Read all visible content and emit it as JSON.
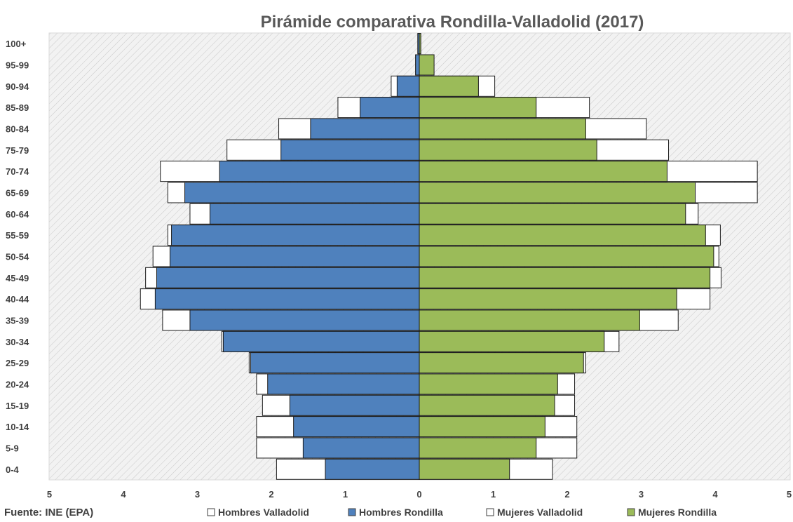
{
  "chart_data": {
    "type": "bar",
    "orientation": "horizontal",
    "title": "Pirámide comparativa Rondilla-Valladolid (2017)",
    "source": "Fuente: INE (EPA)",
    "categories": [
      "100+",
      "95-99",
      "90-94",
      "85-89",
      "80-84",
      "75-79",
      "70-74",
      "65-69",
      "60-64",
      "55-59",
      "50-54",
      "45-49",
      "40-44",
      "35-39",
      "30-34",
      "25-29",
      "20-24",
      "15-19",
      "10-14",
      "5-9",
      "0-4"
    ],
    "xlim": [
      -5,
      5
    ],
    "x_ticks": [
      -5,
      -4,
      -3,
      -2,
      -1,
      0,
      1,
      2,
      3,
      4,
      5
    ],
    "x_tick_labels": [
      "5",
      "4",
      "3",
      "2",
      "1",
      "0",
      "1",
      "2",
      "3",
      "4",
      "5"
    ],
    "grid": false,
    "background_hatch": true,
    "legend_position": "bottom",
    "series": [
      {
        "name": "Hombres Valladolid",
        "color": "#ffffff",
        "side": "left",
        "values": [
          0.02,
          0.05,
          0.38,
          1.1,
          1.9,
          2.6,
          3.5,
          3.4,
          3.1,
          3.4,
          3.6,
          3.7,
          3.77,
          3.47,
          2.67,
          2.3,
          2.2,
          2.12,
          2.2,
          2.2,
          1.93
        ]
      },
      {
        "name": "Hombres Rondilla",
        "color": "#4f81bd",
        "side": "left",
        "values": [
          0.02,
          0.05,
          0.3,
          0.8,
          1.47,
          1.87,
          2.7,
          3.17,
          2.83,
          3.35,
          3.37,
          3.55,
          3.57,
          3.1,
          2.65,
          2.28,
          2.05,
          1.75,
          1.7,
          1.57,
          1.27
        ]
      },
      {
        "name": "Mujeres Valladolid",
        "color": "#ffffff",
        "side": "right",
        "values": [
          0.02,
          0.1,
          1.02,
          2.3,
          3.07,
          3.37,
          4.57,
          4.57,
          3.77,
          4.07,
          4.05,
          4.08,
          3.93,
          3.5,
          2.7,
          2.25,
          2.1,
          2.1,
          2.13,
          2.13,
          1.8
        ]
      },
      {
        "name": "Mujeres Rondilla",
        "color": "#9bbb59",
        "side": "right",
        "values": [
          0.02,
          0.2,
          0.8,
          1.58,
          2.25,
          2.4,
          3.35,
          3.73,
          3.6,
          3.87,
          3.98,
          3.93,
          3.48,
          2.98,
          2.5,
          2.22,
          1.87,
          1.83,
          1.7,
          1.58,
          1.22
        ]
      }
    ]
  }
}
